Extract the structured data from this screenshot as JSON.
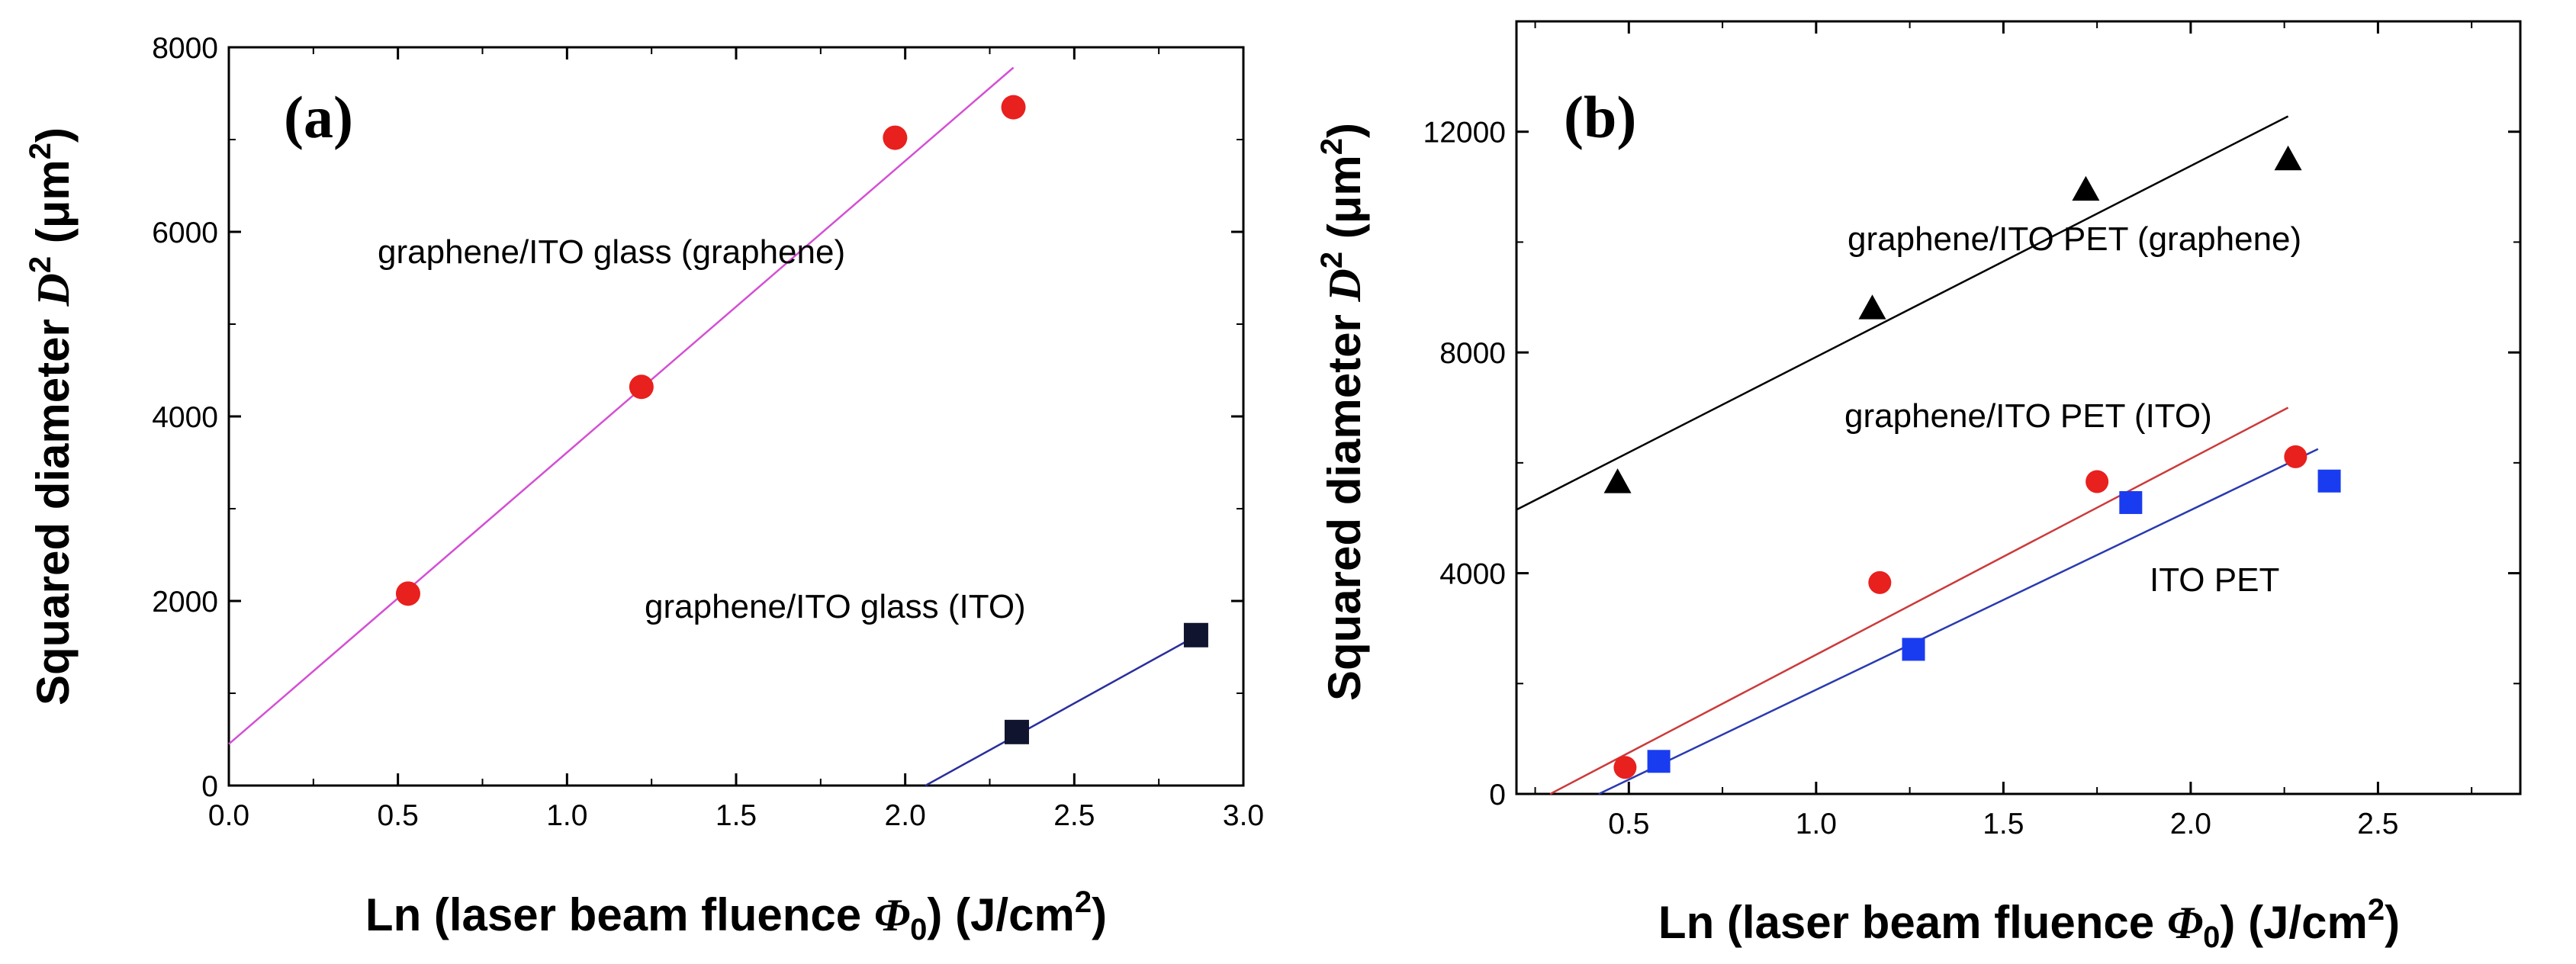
{
  "chart_data": [
    {
      "type": "scatter",
      "panel_label": "(a)",
      "xlabel": {
        "prefix": "Ln ",
        "text": "(laser beam fluence ",
        "symbol": "Φ",
        "sub": "0",
        "close": ")",
        "unit": " (J/cm",
        "sup": "2",
        "unit_close": ")"
      },
      "ylabel": {
        "text": "Squared diameter ",
        "symbol": "D",
        "sup": "2",
        "unit": " (μm",
        "unit_sup": "2",
        "unit_close": ")"
      },
      "xlim": [
        0,
        3
      ],
      "ylim": [
        0,
        8000
      ],
      "xticks": [
        "0.0",
        "0.5",
        "1.0",
        "1.5",
        "2.0",
        "2.5",
        "3.0"
      ],
      "yticks": [
        "0",
        "2000",
        "4000",
        "6000",
        "8000"
      ],
      "series": [
        {
          "name": "graphene/ITO glass (graphene)",
          "marker": "circle",
          "color": "#e8201e",
          "fit_color": "#d44fd4",
          "x": [
            0.53,
            1.22,
            1.97,
            2.32
          ],
          "y": [
            2080,
            4320,
            7020,
            7350
          ],
          "fit_x": [
            0,
            2.32
          ],
          "fit_y": [
            450,
            7780
          ]
        },
        {
          "name": "graphene/ITO glass (ITO)",
          "marker": "square",
          "color": "#10142e",
          "fit_color": "#2a2e9c",
          "x": [
            2.33,
            2.86
          ],
          "y": [
            580,
            1630
          ],
          "fit_x": [
            2.06,
            2.86
          ],
          "fit_y": [
            0,
            1620
          ]
        }
      ],
      "annotations": [
        "graphene/ITO glass (graphene)",
        "graphene/ITO glass (ITO)"
      ]
    },
    {
      "type": "scatter",
      "panel_label": "(b)",
      "xlabel": {
        "prefix": "Ln ",
        "text": "(laser beam fluence ",
        "symbol": "Φ",
        "sub": "0",
        "close": ")",
        "unit": " (J/cm",
        "sup": "2",
        "unit_close": ")"
      },
      "ylabel": {
        "text": "Squared diameter ",
        "symbol": "D",
        "sup": "2",
        "unit": " (μm",
        "unit_sup": "2",
        "unit_close": ")"
      },
      "xlim": [
        0.2,
        2.88
      ],
      "ylim": [
        0,
        14000
      ],
      "xticks": [
        "0.5",
        "1.0",
        "1.5",
        "2.0",
        "2.5"
      ],
      "xtick_values": [
        0.5,
        1.0,
        1.5,
        2.0,
        2.5
      ],
      "yticks": [
        "0",
        "4000",
        "8000",
        "12000"
      ],
      "series": [
        {
          "name": "graphene/ITO PET (graphene)",
          "marker": "triangle",
          "color": "#000000",
          "fit_color": "#000000",
          "x": [
            0.47,
            1.15,
            1.72,
            2.26
          ],
          "y": [
            5650,
            8800,
            10950,
            11500
          ],
          "fit_x": [
            0.2,
            2.26
          ],
          "fit_y": [
            5150,
            12280
          ]
        },
        {
          "name": "graphene/ITO PET (ITO)",
          "marker": "circle",
          "color": "#e8201e",
          "fit_color": "#cc3a3a",
          "x": [
            0.49,
            1.17,
            1.75,
            2.28
          ],
          "y": [
            480,
            3830,
            5660,
            6110
          ],
          "fit_x": [
            0.29,
            2.26
          ],
          "fit_y": [
            0,
            7000
          ]
        },
        {
          "name": "ITO PET",
          "marker": "square",
          "color": "#1a3cf0",
          "fit_color": "#2a3ab0",
          "x": [
            0.58,
            1.26,
            1.84,
            2.37
          ],
          "y": [
            590,
            2620,
            5280,
            5670
          ],
          "fit_x": [
            0.42,
            2.34
          ],
          "fit_y": [
            0,
            6250
          ]
        }
      ],
      "annotations": [
        "graphene/ITO PET (graphene)",
        "graphene/ITO PET (ITO)",
        "ITO PET"
      ]
    }
  ]
}
